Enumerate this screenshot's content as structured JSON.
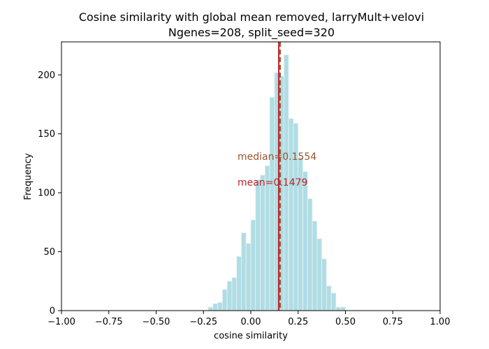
{
  "chart_data": {
    "type": "bar",
    "title": "Cosine similarity with global mean removed, larryMult+velovi",
    "subtitle": "Ngenes=208, split_seed=320",
    "xlabel": "cosine similarity",
    "ylabel": "Frequency",
    "xlim": [
      -1.0,
      1.0
    ],
    "ylim": [
      0,
      228
    ],
    "xticks": [
      "−1.00",
      "−0.75",
      "−0.50",
      "−0.25",
      "0.00",
      "0.25",
      "0.50",
      "0.75",
      "1.00"
    ],
    "xtick_values": [
      -1.0,
      -0.75,
      -0.5,
      -0.25,
      0.0,
      0.25,
      0.5,
      0.75,
      1.0
    ],
    "yticks": [
      "0",
      "50",
      "100",
      "150",
      "200"
    ],
    "ytick_values": [
      0,
      50,
      100,
      150,
      200
    ],
    "bin_width": 0.025,
    "bin_starts": [
      -0.225,
      -0.2,
      -0.175,
      -0.15,
      -0.125,
      -0.1,
      -0.075,
      -0.05,
      -0.025,
      0.0,
      0.025,
      0.05,
      0.075,
      0.1,
      0.125,
      0.15,
      0.175,
      0.2,
      0.225,
      0.25,
      0.275,
      0.3,
      0.325,
      0.35,
      0.375,
      0.4,
      0.425,
      0.45,
      0.475
    ],
    "values": [
      3,
      6,
      7,
      18,
      25,
      28,
      46,
      66,
      57,
      77,
      111,
      115,
      123,
      181,
      202,
      199,
      217,
      163,
      159,
      130,
      118,
      95,
      76,
      61,
      44,
      21,
      15,
      3,
      3
    ],
    "bar_color": "#b0dde4",
    "bar_edge_color": "#e8f4f6",
    "annotations": [
      {
        "text": "median=0.1554",
        "value": 0.1554,
        "color": "#a0522d",
        "line_style": "dashed",
        "x": -0.07,
        "y": 131
      },
      {
        "text": "mean=0.1479",
        "value": 0.1479,
        "color": "#c0202a",
        "line_style": "solid",
        "x": -0.07,
        "y": 109
      }
    ],
    "grid": false
  }
}
